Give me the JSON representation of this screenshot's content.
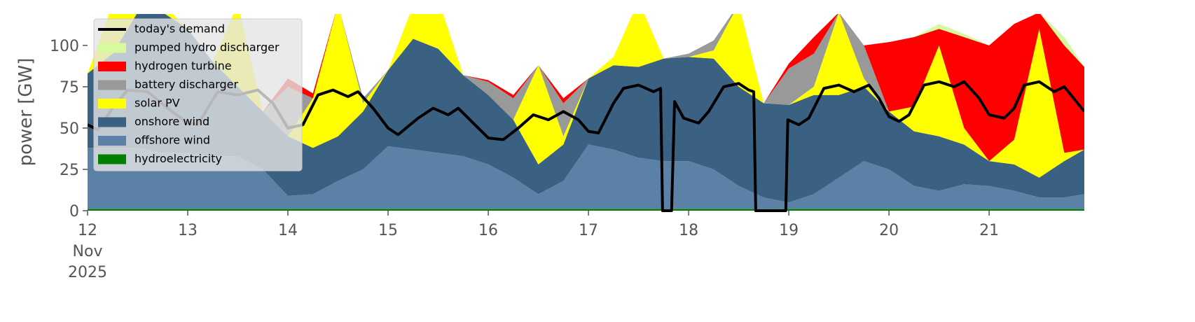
{
  "chart_data": {
    "type": "area",
    "y_label": "power [GW]",
    "xlim": [
      12,
      21.95
    ],
    "ylim": [
      0,
      119
    ],
    "yticks": [
      0,
      25,
      50,
      75,
      100
    ],
    "xticks": [
      {
        "value": 12,
        "label": "12\nNov\n2025"
      },
      13,
      14,
      15,
      16,
      17,
      18,
      19,
      20,
      21
    ],
    "legend": "upper left",
    "x": [
      12,
      12.25,
      12.5,
      12.75,
      13,
      13.25,
      13.5,
      13.75,
      14,
      14.25,
      14.5,
      14.75,
      15,
      15.25,
      15.5,
      15.75,
      16,
      16.25,
      16.5,
      16.75,
      17,
      17.25,
      17.5,
      17.75,
      18,
      18.25,
      18.5,
      18.75,
      19,
      19.25,
      19.5,
      19.75,
      20,
      20.25,
      20.5,
      20.75,
      21,
      21.25,
      21.5,
      21.75,
      21.95
    ],
    "series": [
      {
        "name": "today's demand",
        "type": "line",
        "color": "#000000",
        "x": [
          12,
          12.1,
          12.25,
          12.4,
          12.6,
          12.8,
          13,
          13.1,
          13.3,
          13.5,
          13.7,
          13.85,
          14,
          14.15,
          14.3,
          14.45,
          14.6,
          14.7,
          14.85,
          15,
          15.1,
          15.3,
          15.45,
          15.6,
          15.7,
          15.85,
          16,
          16.15,
          16.3,
          16.45,
          16.6,
          16.75,
          16.9,
          17,
          17.1,
          17.25,
          17.35,
          17.5,
          17.65,
          17.72,
          17.74,
          17.83,
          17.86,
          17.95,
          18.1,
          18.2,
          18.35,
          18.5,
          18.6,
          18.65,
          18.67,
          18.97,
          18.99,
          19.1,
          19.2,
          19.35,
          19.5,
          19.65,
          19.8,
          19.9,
          20,
          20.1,
          20.2,
          20.35,
          20.5,
          20.65,
          20.75,
          20.9,
          21,
          21.15,
          21.25,
          21.35,
          21.5,
          21.65,
          21.75,
          21.95
        ],
        "values": [
          52,
          49,
          62,
          73,
          72,
          62,
          53,
          52,
          72,
          70,
          73,
          65,
          50,
          52,
          70,
          73,
          69,
          72,
          62,
          50,
          46,
          56,
          62,
          58,
          62,
          53,
          44,
          43,
          50,
          58,
          55,
          60,
          55,
          48,
          47,
          65,
          74,
          76,
          72,
          74,
          0,
          0,
          66,
          56,
          53,
          60,
          75,
          77,
          73,
          72,
          0,
          0,
          55,
          52,
          56,
          74,
          76,
          72,
          76,
          68,
          57,
          54,
          58,
          76,
          78,
          75,
          78,
          68,
          58,
          56,
          62,
          76,
          78,
          72,
          75,
          60
        ]
      },
      {
        "name": "pumped hydro discharger",
        "color": "#d9f99e",
        "values": [
          0,
          0,
          0,
          0,
          0,
          0,
          0,
          0,
          0,
          0,
          0,
          0,
          0,
          0,
          0,
          0,
          0,
          0,
          0,
          0,
          0,
          0,
          0,
          0,
          0,
          0,
          0,
          0,
          0,
          0,
          0,
          0,
          0,
          0,
          3,
          2,
          0,
          0,
          0,
          5,
          0
        ]
      },
      {
        "name": "hydrogen turbine",
        "color": "#ff0000",
        "values": [
          0,
          0,
          0,
          0,
          0,
          0,
          0,
          0,
          5,
          3,
          0,
          0,
          0,
          0,
          0,
          0,
          1,
          2,
          0,
          3,
          0,
          0,
          0,
          0,
          0,
          0,
          0,
          0,
          3,
          10,
          0,
          0,
          42,
          42,
          10,
          55,
          70,
          70,
          10,
          65,
          50
        ]
      },
      {
        "name": "battery discharger",
        "color": "#999999",
        "values": [
          0,
          0,
          0,
          0,
          0,
          0,
          0,
          0,
          30,
          0,
          0,
          3,
          0,
          0,
          0,
          0,
          8,
          13,
          0,
          20,
          0,
          0,
          0,
          0,
          2,
          6,
          0,
          0,
          22,
          20,
          0,
          20,
          0,
          0,
          0,
          0,
          0,
          0,
          0,
          0,
          0
        ]
      },
      {
        "name": "solar PV",
        "color": "#ffff00",
        "values": [
          0,
          30,
          30,
          5,
          0,
          0,
          50,
          0,
          0,
          30,
          80,
          5,
          0,
          20,
          30,
          0,
          0,
          0,
          60,
          5,
          0,
          5,
          40,
          0,
          0,
          5,
          50,
          0,
          0,
          5,
          50,
          5,
          0,
          15,
          55,
          10,
          0,
          15,
          90,
          5,
          0
        ]
      },
      {
        "name": "onshore wind",
        "color": "#3b6182",
        "values": [
          45,
          57,
          82,
          85,
          75,
          57,
          42,
          35,
          36,
          28,
          27,
          35,
          46,
          67,
          63,
          49,
          42,
          35,
          18,
          22,
          40,
          51,
          55,
          62,
          63,
          67,
          60,
          57,
          59,
          60,
          50,
          45,
          35,
          33,
          33,
          24,
          15,
          16,
          12,
          22,
          27
        ]
      },
      {
        "name": "offshore wind",
        "color": "#5b82a6",
        "values": [
          37,
          37,
          37,
          34,
          34,
          32,
          32,
          24,
          8,
          9,
          17,
          24,
          38,
          36,
          34,
          32,
          27,
          19,
          9,
          17,
          39,
          36,
          31,
          29,
          29,
          24,
          14,
          7,
          4,
          9,
          19,
          29,
          24,
          14,
          11,
          15,
          14,
          11,
          7,
          7,
          9
        ]
      },
      {
        "name": "hydroelectricity",
        "color": "#008000",
        "values": [
          1,
          1,
          1,
          1,
          1,
          1,
          1,
          1,
          1,
          1,
          1,
          1,
          1,
          1,
          1,
          1,
          1,
          1,
          1,
          1,
          1,
          1,
          1,
          1,
          1,
          1,
          1,
          1,
          1,
          1,
          1,
          1,
          1,
          1,
          1,
          1,
          1,
          1,
          1,
          1,
          1
        ]
      }
    ]
  }
}
